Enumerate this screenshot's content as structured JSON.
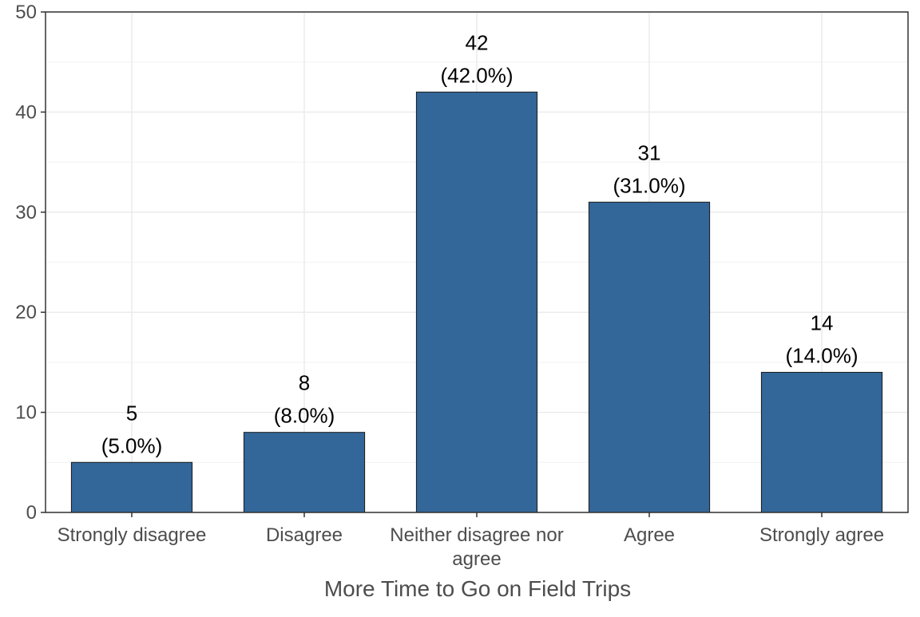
{
  "chart_data": {
    "type": "bar",
    "categories": [
      "Strongly disagree",
      "Disagree",
      "Neither disagree nor agree",
      "Agree",
      "Strongly agree"
    ],
    "values": [
      5,
      8,
      42,
      31,
      14
    ],
    "data_labels": [
      [
        "5",
        "(5.0%)"
      ],
      [
        "8",
        "(8.0%)"
      ],
      [
        "42",
        "(42.0%)"
      ],
      [
        "31",
        "(31.0%)"
      ],
      [
        "14",
        "(14.0%)"
      ]
    ],
    "title": "",
    "xlabel": "More Time to Go on Field Trips",
    "ylabel": "",
    "ylim": [
      0,
      50
    ],
    "yticks": [
      "0",
      "10",
      "20",
      "30",
      "40",
      "50"
    ],
    "grid": true,
    "legend": "none",
    "colors": {
      "bar": "#336699",
      "bar_outline": "#1a1a1a",
      "grid": "#ebebeb",
      "axis": "#333333"
    }
  }
}
